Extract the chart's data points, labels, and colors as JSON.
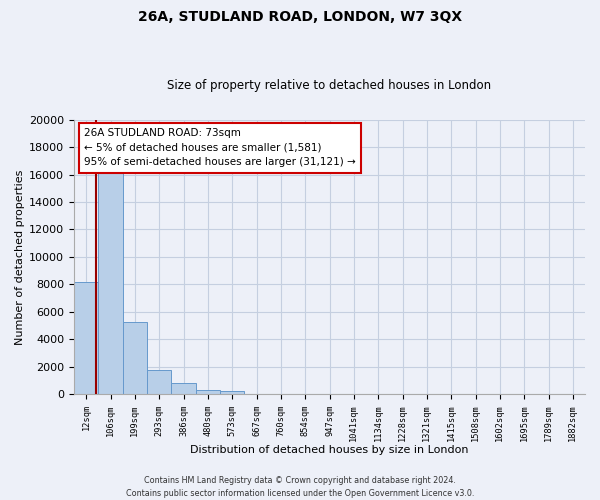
{
  "title": "26A, STUDLAND ROAD, LONDON, W7 3QX",
  "subtitle": "Size of property relative to detached houses in London",
  "xlabel": "Distribution of detached houses by size in London",
  "ylabel": "Number of detached properties",
  "bar_labels": [
    "12sqm",
    "106sqm",
    "199sqm",
    "293sqm",
    "386sqm",
    "480sqm",
    "573sqm",
    "667sqm",
    "760sqm",
    "854sqm",
    "947sqm",
    "1041sqm",
    "1134sqm",
    "1228sqm",
    "1321sqm",
    "1415sqm",
    "1508sqm",
    "1602sqm",
    "1695sqm",
    "1789sqm",
    "1882sqm"
  ],
  "bar_values": [
    8200,
    16500,
    5300,
    1800,
    800,
    300,
    250,
    0,
    0,
    0,
    0,
    0,
    0,
    0,
    0,
    0,
    0,
    0,
    0,
    0,
    0
  ],
  "bar_color": "#b8cfe8",
  "bar_edge_color": "#6699cc",
  "highlight_line_color": "#990000",
  "ylim": [
    0,
    20000
  ],
  "yticks": [
    0,
    2000,
    4000,
    6000,
    8000,
    10000,
    12000,
    14000,
    16000,
    18000,
    20000
  ],
  "annotation_title": "26A STUDLAND ROAD: 73sqm",
  "annotation_line1": "← 5% of detached houses are smaller (1,581)",
  "annotation_line2": "95% of semi-detached houses are larger (31,121) →",
  "annotation_box_facecolor": "#ffffff",
  "annotation_box_edgecolor": "#cc0000",
  "footer1": "Contains HM Land Registry data © Crown copyright and database right 2024.",
  "footer2": "Contains public sector information licensed under the Open Government Licence v3.0.",
  "bg_color": "#edf0f8",
  "plot_bg_color": "#edf0f8",
  "grid_color": "#c5cfe0"
}
